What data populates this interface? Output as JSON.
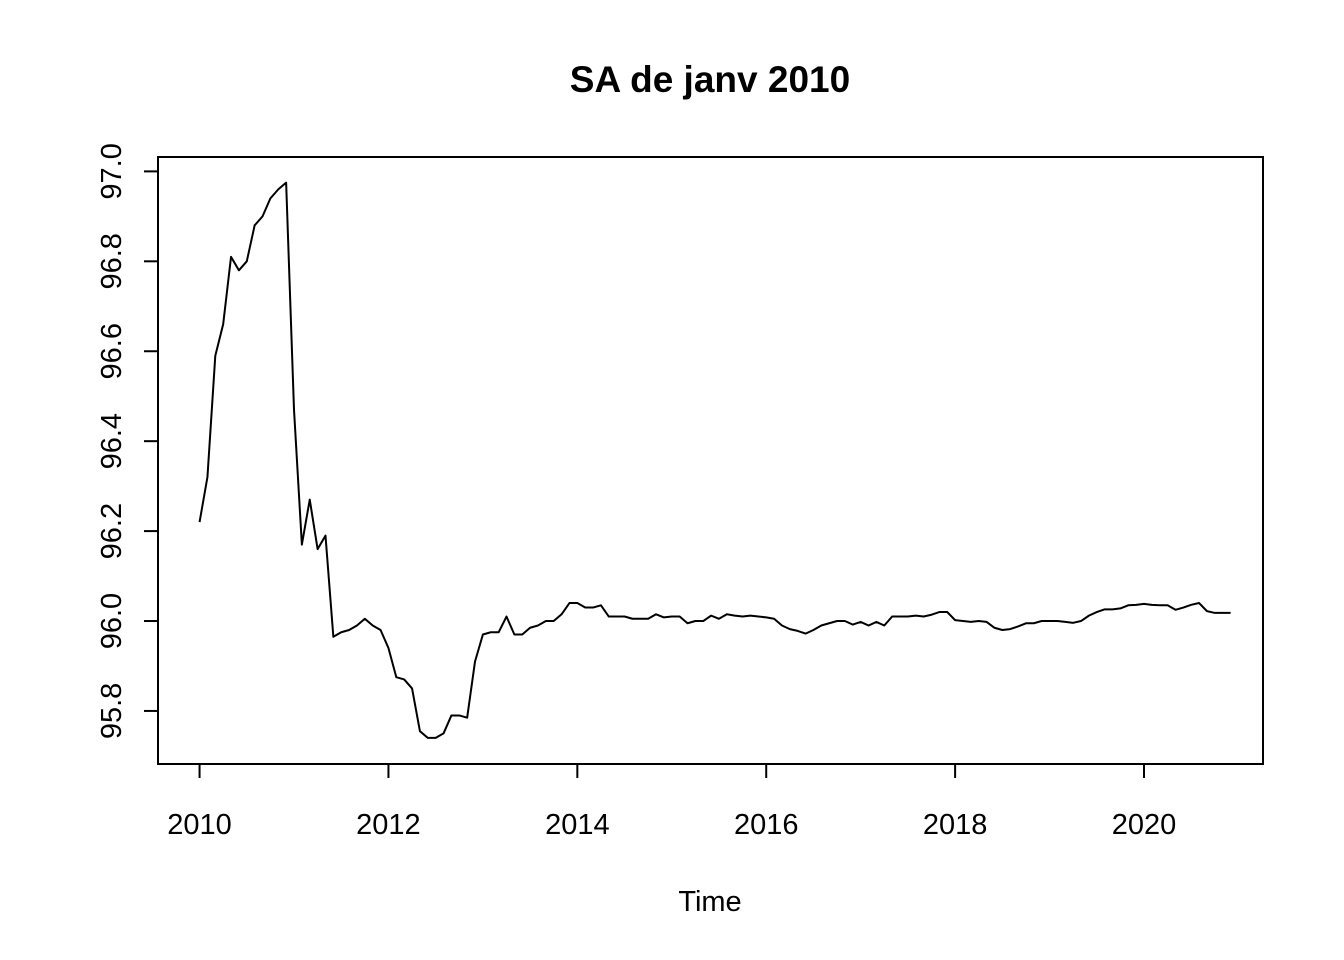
{
  "chart_data": {
    "type": "line",
    "title": "SA de janv 2010",
    "xlabel": "Time",
    "ylabel": "",
    "xlim": [
      2010,
      2021
    ],
    "ylim": [
      95.74,
      96.98
    ],
    "xticks": [
      "2010",
      "2012",
      "2014",
      "2016",
      "2018",
      "2020"
    ],
    "yticks": [
      "95.8",
      "96.0",
      "96.2",
      "96.4",
      "96.6",
      "96.8",
      "97.0"
    ],
    "grid": false,
    "legend": "none",
    "frequency": 12,
    "start": "2010-01",
    "series": [
      {
        "name": "",
        "values": [
          96.22,
          96.32,
          96.59,
          96.66,
          96.81,
          96.78,
          96.8,
          96.88,
          96.9,
          96.94,
          96.96,
          96.975,
          96.47,
          96.17,
          96.27,
          96.16,
          96.19,
          95.965,
          95.975,
          95.98,
          95.99,
          96.005,
          95.99,
          95.98,
          95.94,
          95.875,
          95.87,
          95.85,
          95.755,
          95.74,
          95.74,
          95.75,
          95.79,
          95.79,
          95.785,
          95.91,
          95.97,
          95.975,
          95.975,
          96.01,
          95.97,
          95.97,
          95.985,
          95.99,
          96.0,
          96.0,
          96.015,
          96.04,
          96.04,
          96.03,
          96.03,
          96.035,
          96.01,
          96.01,
          96.01,
          96.005,
          96.005,
          96.005,
          96.015,
          96.008,
          96.01,
          96.01,
          95.995,
          96.0,
          96.0,
          96.012,
          96.005,
          96.015,
          96.012,
          96.01,
          96.012,
          96.01,
          96.008,
          96.005,
          95.99,
          95.982,
          95.978,
          95.972,
          95.98,
          95.99,
          95.995,
          96.0,
          96.0,
          95.992,
          95.998,
          95.99,
          95.998,
          95.99,
          96.01,
          96.01,
          96.01,
          96.012,
          96.01,
          96.014,
          96.02,
          96.02,
          96.002,
          96.0,
          95.998,
          96.0,
          95.998,
          95.985,
          95.98,
          95.982,
          95.988,
          95.995,
          95.995,
          96.0,
          96.0,
          96.0,
          95.998,
          95.996,
          96.0,
          96.012,
          96.02,
          96.026,
          96.026,
          96.028,
          96.035,
          96.036,
          96.038,
          96.036,
          96.035,
          96.035,
          96.025,
          96.03,
          96.036,
          96.04,
          96.022,
          96.018,
          96.018,
          96.018
        ]
      }
    ]
  }
}
